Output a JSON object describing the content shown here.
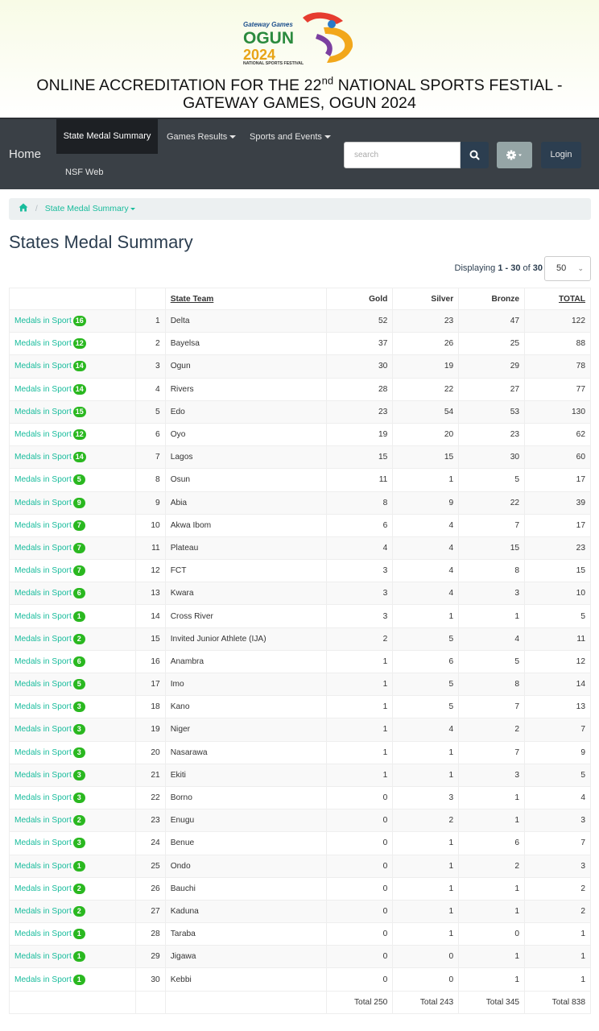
{
  "header": {
    "logo_top": "Gateway Games",
    "logo_main": "OGUN",
    "logo_year": "2024",
    "logo_sub": "NATIONAL SPORTS FESTIVAL",
    "title_part1": "ONLINE ACCREDITATION FOR THE 22",
    "title_sup": "nd",
    "title_part2": " NATIONAL SPORTS FESTIAL - GATEWAY GAMES, OGUN 2024"
  },
  "navbar": {
    "home": "Home",
    "state_medal_summary": "State Medal Summary",
    "games_results": "Games Results",
    "sports_events": "Sports and Events",
    "nsf_web": "NSF Web",
    "search_placeholder": "search",
    "login": "Login"
  },
  "breadcrumb": {
    "current": "State Medal Summary"
  },
  "page_title": "States Medal Summary",
  "pagination": {
    "prefix": "Displaying ",
    "range": "1 - 30",
    "of": " of ",
    "total": "30",
    "per_page": "50"
  },
  "table": {
    "headers": {
      "team": "State Team",
      "gold": "Gold",
      "silver": "Silver",
      "bronze": "Bronze",
      "total": "TOTAL"
    },
    "link_label": "Medals in Sport",
    "rows": [
      {
        "sports": "16",
        "rank": "1",
        "team": "Delta",
        "gold": "52",
        "silver": "23",
        "bronze": "47",
        "total": "122"
      },
      {
        "sports": "12",
        "rank": "2",
        "team": "Bayelsa",
        "gold": "37",
        "silver": "26",
        "bronze": "25",
        "total": "88"
      },
      {
        "sports": "14",
        "rank": "3",
        "team": "Ogun",
        "gold": "30",
        "silver": "19",
        "bronze": "29",
        "total": "78"
      },
      {
        "sports": "14",
        "rank": "4",
        "team": "Rivers",
        "gold": "28",
        "silver": "22",
        "bronze": "27",
        "total": "77"
      },
      {
        "sports": "15",
        "rank": "5",
        "team": "Edo",
        "gold": "23",
        "silver": "54",
        "bronze": "53",
        "total": "130"
      },
      {
        "sports": "12",
        "rank": "6",
        "team": "Oyo",
        "gold": "19",
        "silver": "20",
        "bronze": "23",
        "total": "62"
      },
      {
        "sports": "14",
        "rank": "7",
        "team": "Lagos",
        "gold": "15",
        "silver": "15",
        "bronze": "30",
        "total": "60"
      },
      {
        "sports": "5",
        "rank": "8",
        "team": "Osun",
        "gold": "11",
        "silver": "1",
        "bronze": "5",
        "total": "17"
      },
      {
        "sports": "9",
        "rank": "9",
        "team": "Abia",
        "gold": "8",
        "silver": "9",
        "bronze": "22",
        "total": "39"
      },
      {
        "sports": "7",
        "rank": "10",
        "team": "Akwa Ibom",
        "gold": "6",
        "silver": "4",
        "bronze": "7",
        "total": "17"
      },
      {
        "sports": "7",
        "rank": "11",
        "team": "Plateau",
        "gold": "4",
        "silver": "4",
        "bronze": "15",
        "total": "23"
      },
      {
        "sports": "7",
        "rank": "12",
        "team": "FCT",
        "gold": "3",
        "silver": "4",
        "bronze": "8",
        "total": "15"
      },
      {
        "sports": "6",
        "rank": "13",
        "team": "Kwara",
        "gold": "3",
        "silver": "4",
        "bronze": "3",
        "total": "10"
      },
      {
        "sports": "1",
        "rank": "14",
        "team": "Cross River",
        "gold": "3",
        "silver": "1",
        "bronze": "1",
        "total": "5"
      },
      {
        "sports": "2",
        "rank": "15",
        "team": "Invited Junior Athlete (IJA)",
        "gold": "2",
        "silver": "5",
        "bronze": "4",
        "total": "11"
      },
      {
        "sports": "6",
        "rank": "16",
        "team": "Anambra",
        "gold": "1",
        "silver": "6",
        "bronze": "5",
        "total": "12"
      },
      {
        "sports": "5",
        "rank": "17",
        "team": "Imo",
        "gold": "1",
        "silver": "5",
        "bronze": "8",
        "total": "14"
      },
      {
        "sports": "3",
        "rank": "18",
        "team": "Kano",
        "gold": "1",
        "silver": "5",
        "bronze": "7",
        "total": "13"
      },
      {
        "sports": "3",
        "rank": "19",
        "team": "Niger",
        "gold": "1",
        "silver": "4",
        "bronze": "2",
        "total": "7"
      },
      {
        "sports": "3",
        "rank": "20",
        "team": "Nasarawa",
        "gold": "1",
        "silver": "1",
        "bronze": "7",
        "total": "9"
      },
      {
        "sports": "3",
        "rank": "21",
        "team": "Ekiti",
        "gold": "1",
        "silver": "1",
        "bronze": "3",
        "total": "5"
      },
      {
        "sports": "3",
        "rank": "22",
        "team": "Borno",
        "gold": "0",
        "silver": "3",
        "bronze": "1",
        "total": "4"
      },
      {
        "sports": "2",
        "rank": "23",
        "team": "Enugu",
        "gold": "0",
        "silver": "2",
        "bronze": "1",
        "total": "3"
      },
      {
        "sports": "3",
        "rank": "24",
        "team": "Benue",
        "gold": "0",
        "silver": "1",
        "bronze": "6",
        "total": "7"
      },
      {
        "sports": "1",
        "rank": "25",
        "team": "Ondo",
        "gold": "0",
        "silver": "1",
        "bronze": "2",
        "total": "3"
      },
      {
        "sports": "2",
        "rank": "26",
        "team": "Bauchi",
        "gold": "0",
        "silver": "1",
        "bronze": "1",
        "total": "2"
      },
      {
        "sports": "2",
        "rank": "27",
        "team": "Kaduna",
        "gold": "0",
        "silver": "1",
        "bronze": "1",
        "total": "2"
      },
      {
        "sports": "1",
        "rank": "28",
        "team": "Taraba",
        "gold": "0",
        "silver": "1",
        "bronze": "0",
        "total": "1"
      },
      {
        "sports": "1",
        "rank": "29",
        "team": "Jigawa",
        "gold": "0",
        "silver": "0",
        "bronze": "1",
        "total": "1"
      },
      {
        "sports": "1",
        "rank": "30",
        "team": "Kebbi",
        "gold": "0",
        "silver": "0",
        "bronze": "1",
        "total": "1"
      }
    ],
    "totals": {
      "gold": "Total 250",
      "silver": "Total 243",
      "bronze": "Total 345",
      "total": "Total 838"
    }
  },
  "colors": {
    "navbar": "#3a4046",
    "link": "#18bc9c",
    "badge": "#2ab820",
    "primary": "#2c3e50"
  }
}
